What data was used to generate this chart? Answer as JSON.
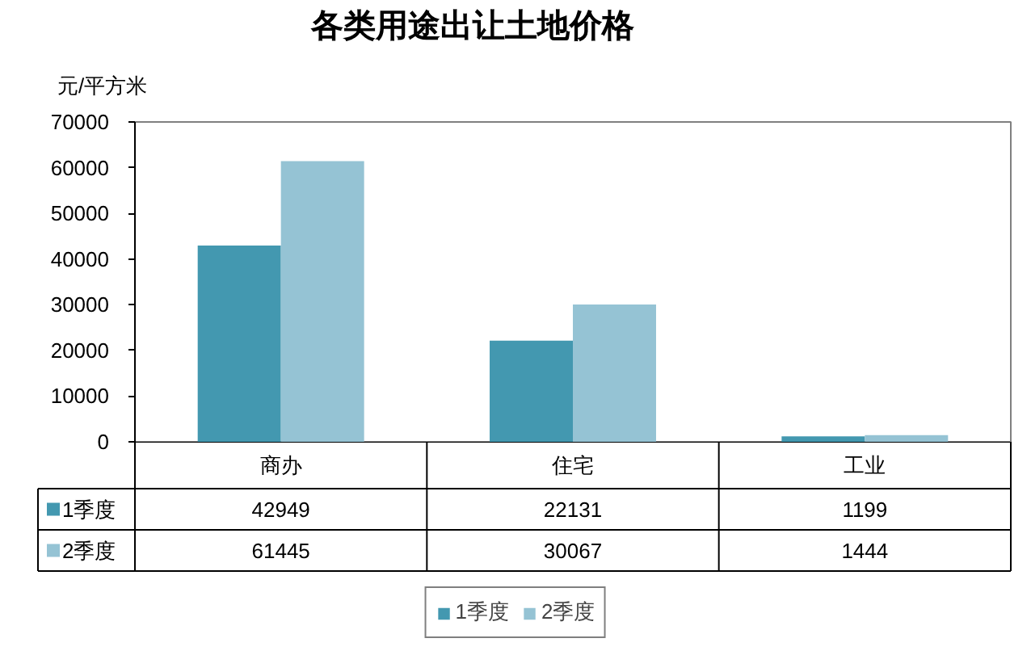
{
  "chart_data": {
    "type": "bar",
    "title": "各类用途出让土地价格",
    "ylabel": "元/平方米",
    "categories": [
      "商办",
      "住宅",
      "工业"
    ],
    "series": [
      {
        "name": "1季度",
        "color": "#4398b0",
        "values": [
          42949,
          22131,
          1199
        ]
      },
      {
        "name": "2季度",
        "color": "#95c3d4",
        "values": [
          61445,
          30067,
          1444
        ]
      }
    ],
    "ylim": [
      0,
      70000
    ],
    "yticks": [
      0,
      10000,
      20000,
      30000,
      40000,
      50000,
      60000,
      70000
    ],
    "grid": false,
    "legend": "bottom",
    "data_labels": true
  }
}
